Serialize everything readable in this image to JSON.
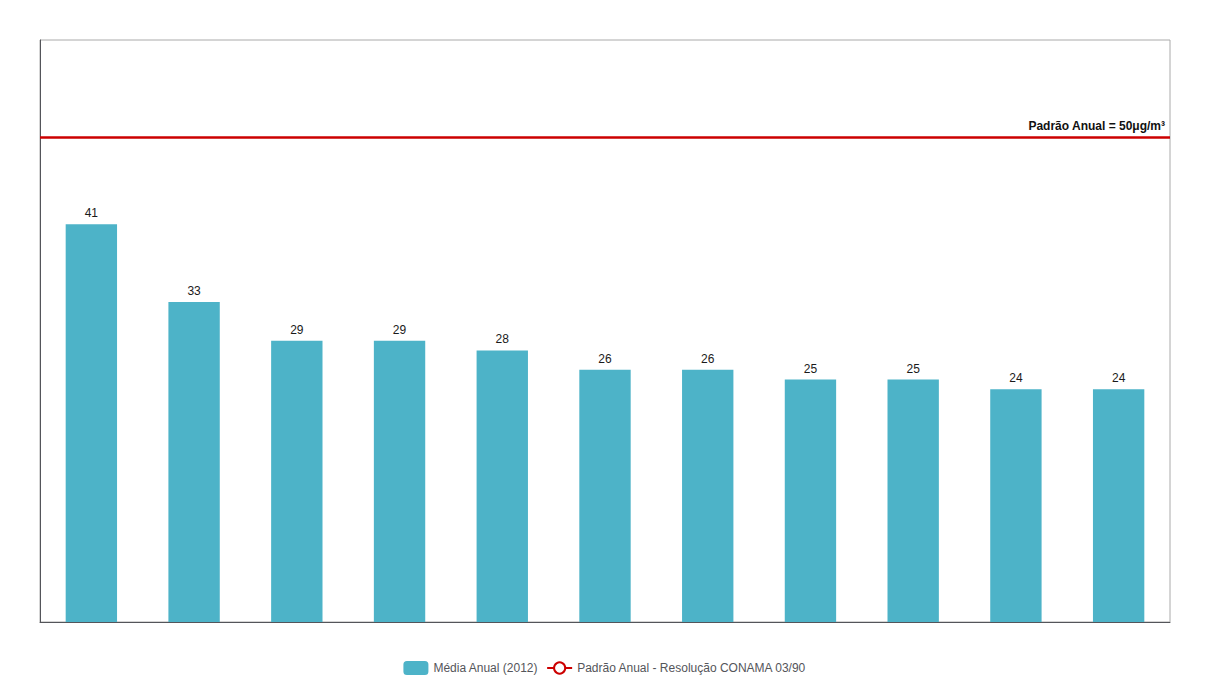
{
  "chart_data": {
    "type": "bar",
    "categories": [
      null,
      null,
      null,
      null,
      null,
      null,
      null,
      null,
      null,
      null,
      null
    ],
    "series": [
      {
        "name": "Média Anual (2012)",
        "color": "#4db3c8",
        "values": [
          41,
          33,
          29,
          29,
          28,
          26,
          26,
          25,
          25,
          24,
          24
        ]
      }
    ],
    "reference_line": {
      "name": "Padrão Anual - Resolução CONAMA 03/90",
      "value": 50,
      "color": "#cc0000",
      "label": "Padrão Anual = 50μg/m³"
    },
    "ylim": [
      0,
      60
    ],
    "yticks": [],
    "tick_labels": false,
    "data_labels": true,
    "grid": false,
    "legend": "bottom"
  }
}
